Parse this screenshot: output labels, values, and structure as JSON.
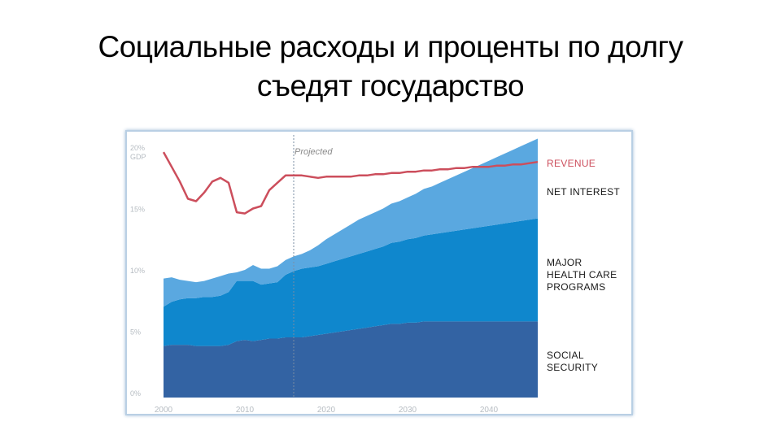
{
  "slide": {
    "title_line1": "Социальные расходы и проценты по долгу",
    "title_line2": "съедят государство"
  },
  "chart_data": {
    "type": "area",
    "stacked": true,
    "projected_label": "Projected",
    "projected_from_year": 2016,
    "x": [
      2000,
      2001,
      2002,
      2003,
      2004,
      2005,
      2006,
      2007,
      2008,
      2009,
      2010,
      2011,
      2012,
      2013,
      2014,
      2015,
      2016,
      2017,
      2018,
      2019,
      2020,
      2021,
      2022,
      2023,
      2024,
      2025,
      2026,
      2027,
      2028,
      2029,
      2030,
      2031,
      2032,
      2033,
      2034,
      2035,
      2036,
      2037,
      2038,
      2039,
      2040,
      2041,
      2042,
      2043,
      2044,
      2045,
      2046
    ],
    "xticks": [
      "2000",
      "2010",
      "2020",
      "2030",
      "2040"
    ],
    "ylim": [
      0,
      21
    ],
    "yticks": [
      "0%",
      "5%",
      "10%",
      "15%",
      "20% GDP"
    ],
    "series": [
      {
        "name": "SOCIAL SECURITY",
        "color": "#3363a3",
        "values": [
          4.2,
          4.3,
          4.3,
          4.3,
          4.2,
          4.2,
          4.2,
          4.2,
          4.3,
          4.6,
          4.7,
          4.6,
          4.7,
          4.8,
          4.8,
          4.9,
          4.9,
          4.9,
          5.0,
          5.1,
          5.2,
          5.3,
          5.4,
          5.5,
          5.6,
          5.7,
          5.8,
          5.9,
          6.0,
          6.0,
          6.1,
          6.1,
          6.2,
          6.2,
          6.2,
          6.2,
          6.2,
          6.2,
          6.2,
          6.2,
          6.2,
          6.2,
          6.2,
          6.2,
          6.2,
          6.2,
          6.2
        ]
      },
      {
        "name": "MAJOR HEALTH CARE PROGRAMS",
        "color": "#0f87cd",
        "values": [
          3.2,
          3.5,
          3.7,
          3.8,
          3.9,
          4.0,
          4.0,
          4.1,
          4.3,
          4.9,
          4.8,
          4.9,
          4.5,
          4.5,
          4.6,
          5.1,
          5.4,
          5.6,
          5.6,
          5.6,
          5.7,
          5.8,
          5.9,
          6.0,
          6.1,
          6.2,
          6.3,
          6.4,
          6.6,
          6.7,
          6.8,
          6.9,
          7.0,
          7.1,
          7.2,
          7.3,
          7.4,
          7.5,
          7.6,
          7.7,
          7.8,
          7.9,
          8.0,
          8.1,
          8.2,
          8.3,
          8.4
        ]
      },
      {
        "name": "NET INTEREST",
        "color": "#5aa8e0",
        "values": [
          2.3,
          2.0,
          1.6,
          1.4,
          1.3,
          1.3,
          1.5,
          1.6,
          1.5,
          0.7,
          0.9,
          1.3,
          1.3,
          1.2,
          1.3,
          1.2,
          1.2,
          1.2,
          1.4,
          1.7,
          2.0,
          2.2,
          2.4,
          2.6,
          2.8,
          2.9,
          3.0,
          3.1,
          3.2,
          3.3,
          3.4,
          3.6,
          3.8,
          3.9,
          4.1,
          4.3,
          4.5,
          4.7,
          4.9,
          5.1,
          5.3,
          5.5,
          5.7,
          5.9,
          6.1,
          6.3,
          6.5
        ]
      }
    ],
    "revenue": {
      "name": "REVENUE",
      "color": "#cc4e5c",
      "values": [
        20.0,
        18.8,
        17.6,
        16.2,
        16.0,
        16.7,
        17.6,
        17.9,
        17.5,
        15.1,
        15.0,
        15.4,
        15.6,
        16.9,
        17.5,
        18.1,
        18.1,
        18.1,
        18.0,
        17.9,
        18.0,
        18.0,
        18.0,
        18.0,
        18.1,
        18.1,
        18.2,
        18.2,
        18.3,
        18.3,
        18.4,
        18.4,
        18.5,
        18.5,
        18.6,
        18.6,
        18.7,
        18.7,
        18.8,
        18.8,
        18.8,
        18.9,
        18.9,
        19.0,
        19.0,
        19.1,
        19.2
      ]
    },
    "legend": [
      "REVENUE",
      "NET INTEREST",
      "MAJOR HEALTH CARE PROGRAMS",
      "SOCIAL SECURITY"
    ]
  }
}
